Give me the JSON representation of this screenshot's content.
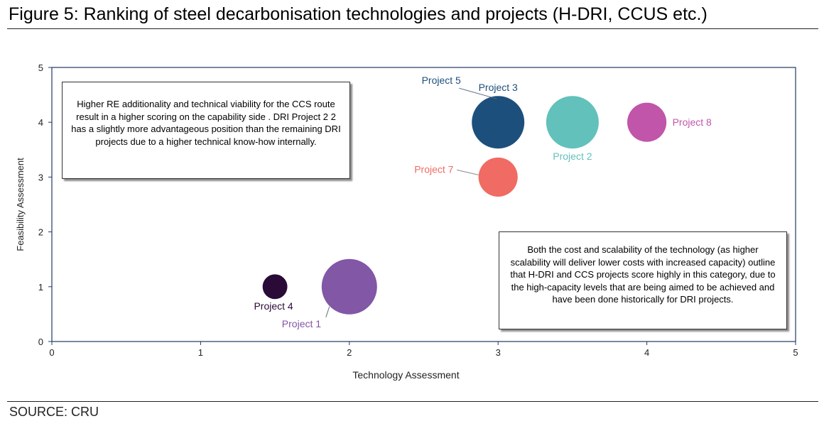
{
  "figure_title": "Figure 5: Ranking of steel decarbonisation technologies and projects (H-DRI, CCUS etc.)",
  "source": "SOURCE: CRU",
  "notes": {
    "left": "Higher RE additionality and technical viability for the CCS route result in a higher scoring on the capability side . DRI Project 2 2 has a slightly more advantageous position than the remaining DRI projects due to a higher technical know-how internally.",
    "right": "Both the cost and scalability of the technology (as higher scalability will deliver lower costs with increased capacity) outline that H-DRI and CCS projects score highly in this category, due to the high-capacity levels that are being aimed to be achieved and have been done historically for DRI projects."
  },
  "chart_data": {
    "type": "scatter",
    "subtype": "bubble",
    "title": "",
    "xlabel": "Technology Assessment",
    "ylabel": "Feasibility Assessment",
    "xlim": [
      0,
      5
    ],
    "ylim": [
      0,
      5
    ],
    "xticks": [
      "0",
      "1",
      "2",
      "3",
      "4",
      "5"
    ],
    "yticks": [
      "0",
      "1",
      "2",
      "3",
      "4",
      "5"
    ],
    "grid": false,
    "series": [
      {
        "name": "Project 1",
        "x": 2,
        "y": 1,
        "size": 1.0,
        "color": "#8157a6"
      },
      {
        "name": "Project 2",
        "x": 3.5,
        "y": 4,
        "size": 0.9,
        "color": "#62c1bb"
      },
      {
        "name": "Project 3",
        "x": 3,
        "y": 4,
        "size": 0.9,
        "color": "#1d4f7c"
      },
      {
        "name": "Project 4",
        "x": 1.5,
        "y": 1,
        "size": 0.2,
        "color": "#2a0a36"
      },
      {
        "name": "Project 5",
        "x": 3,
        "y": 4,
        "size": 0.0,
        "color": "#1d4f7c"
      },
      {
        "name": "Project 7",
        "x": 3,
        "y": 3,
        "size": 0.5,
        "color": "#f06b63"
      },
      {
        "name": "Project 8",
        "x": 4,
        "y": 4,
        "size": 0.5,
        "color": "#c155a9"
      }
    ]
  }
}
